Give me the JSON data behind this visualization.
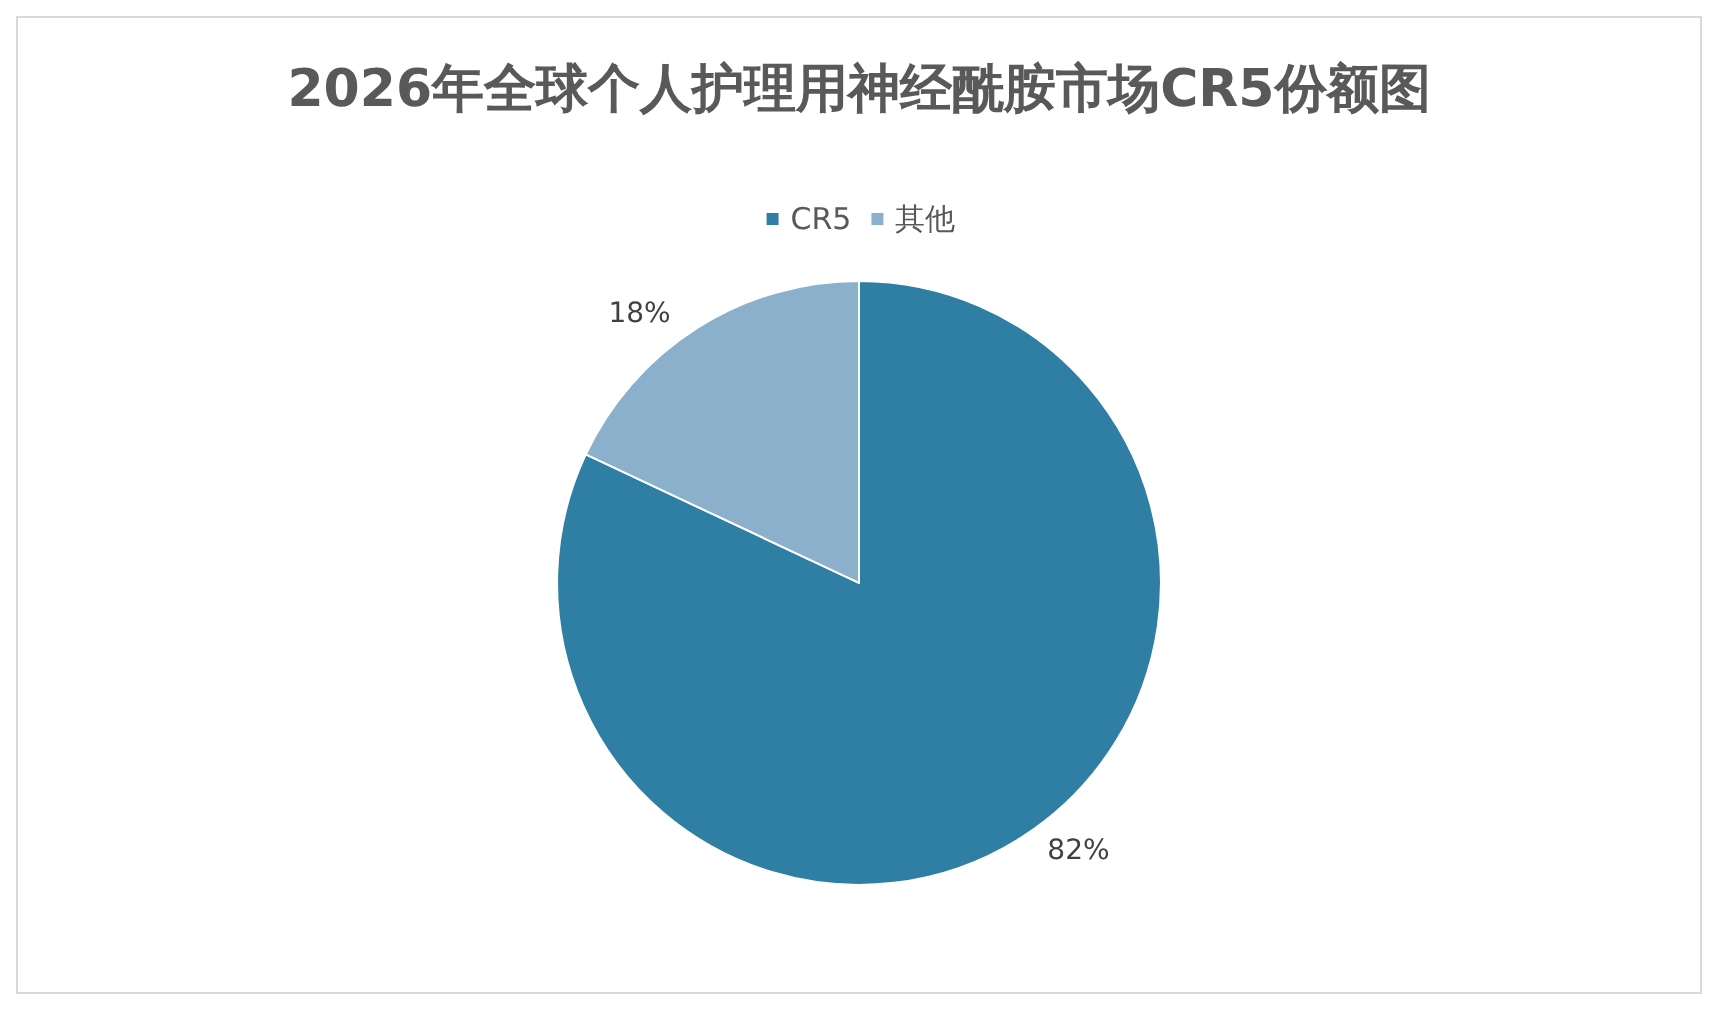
{
  "chart_data": {
    "type": "pie",
    "title": "2026年全球个人护理用神经酰胺市场CR5份额图",
    "categories": [
      "CR5",
      "其他"
    ],
    "values": [
      82,
      18
    ],
    "colors": [
      "#2e7fa3",
      "#8ab0cb"
    ],
    "value_labels": [
      "82%",
      "18%"
    ],
    "legend": "top"
  }
}
